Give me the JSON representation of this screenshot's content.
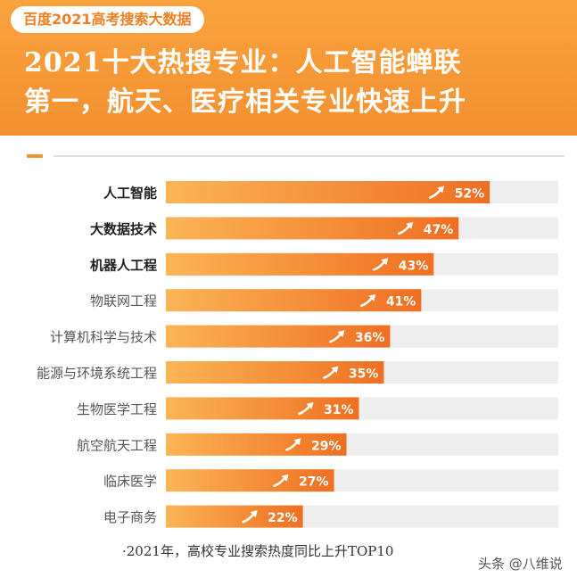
{
  "header": {
    "tag": "百度2021高考搜索大数据",
    "title_line1": "2021十大热搜专业：人工智能蝉联",
    "title_line2": "第一，航天、医疗相关专业快速上升"
  },
  "footnote": "·2021年，高校专业搜索热度同比上升TOP10",
  "watermark": "头条 @八维说",
  "colors": {
    "header_bg": "#f7972f",
    "bar_gradient_start": "#fbb556",
    "bar_gradient_end": "#ef6f22",
    "track": "#eeeeee",
    "bold_label": "#1f1f1f",
    "normal_label": "#555555"
  },
  "chart_data": {
    "type": "bar",
    "orientation": "horizontal",
    "categories": [
      "人工智能",
      "大数据技术",
      "机器人工程",
      "物联网工程",
      "计算机科学与技术",
      "能源与环境系统工程",
      "生物医学工程",
      "航空航天工程",
      "临床医学",
      "电子商务"
    ],
    "values": [
      52,
      47,
      43,
      41,
      36,
      35,
      31,
      29,
      27,
      22
    ],
    "value_labels": [
      "52%",
      "47%",
      "43%",
      "41%",
      "36%",
      "35%",
      "31%",
      "29%",
      "27%",
      "22%"
    ],
    "bold_categories": [
      "人工智能",
      "大数据技术",
      "机器人工程"
    ],
    "unit": "%",
    "marker_icon": "rising-arrow-icon",
    "xlim": [
      0,
      63
    ]
  }
}
